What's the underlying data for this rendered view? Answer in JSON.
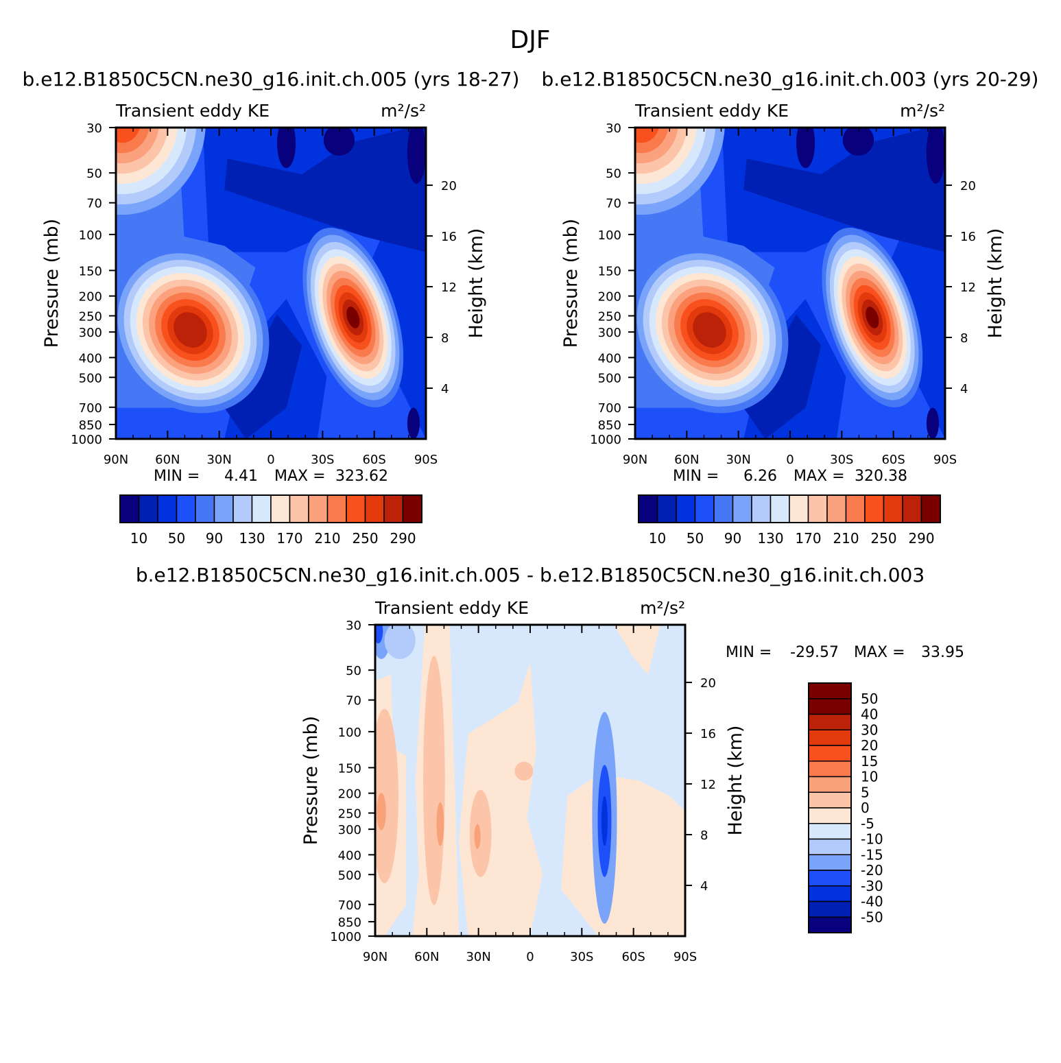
{
  "page_title": "DJF",
  "units": "m²/s²",
  "colors": {
    "main_scale": [
      "#08007c",
      "#0020b4",
      "#0032de",
      "#1e50fa",
      "#4678f5",
      "#7aa3fa",
      "#b2cbfb",
      "#d8e8fc",
      "#fde6d4",
      "#fcc4a8",
      "#fba17e",
      "#f97a4c",
      "#f8511e",
      "#e23a0c",
      "#bc2208",
      "#7a0000"
    ],
    "diff_scale": [
      "#08007c",
      "#0020b4",
      "#0032de",
      "#1e50fa",
      "#7aa3fa",
      "#b2cbfb",
      "#d8e8fc",
      "#fde6d4",
      "#fcc4a8",
      "#f9a178",
      "#f97a4c",
      "#f8511e",
      "#e23a0c",
      "#bc2208",
      "#7a0000"
    ]
  },
  "chart_data": [
    {
      "type": "heatmap",
      "title": "b.e12.B1850C5CN.ne30_g16.init.ch.005 (yrs 18-27)",
      "left_string": "Transient eddy KE",
      "right_string": "m²/s²",
      "ylabel": "Pressure (mb)",
      "ylabel_right": "Height (km)",
      "x_ticks": [
        "90N",
        "60N",
        "30N",
        "0",
        "30S",
        "60S",
        "90S"
      ],
      "y_ticks": [
        "30",
        "50",
        "70",
        "100",
        "150",
        "200",
        "250",
        "300",
        "400",
        "500",
        "700",
        "850",
        "1000"
      ],
      "y_ticks_right": [
        "20",
        "16",
        "12",
        "8",
        "4"
      ],
      "min_label": "MIN =",
      "min_value": "4.41",
      "max_label": "MAX =",
      "max_value": "323.62",
      "colorbar_labels": [
        "10",
        "50",
        "90",
        "130",
        "170",
        "210",
        "250",
        "290"
      ]
    },
    {
      "type": "heatmap",
      "title": "b.e12.B1850C5CN.ne30_g16.init.ch.003 (yrs 20-29)",
      "left_string": "Transient eddy KE",
      "right_string": "m²/s²",
      "ylabel": "Pressure (mb)",
      "ylabel_right": "Height (km)",
      "x_ticks": [
        "90N",
        "60N",
        "30N",
        "0",
        "30S",
        "60S",
        "90S"
      ],
      "y_ticks": [
        "30",
        "50",
        "70",
        "100",
        "150",
        "200",
        "250",
        "300",
        "400",
        "500",
        "700",
        "850",
        "1000"
      ],
      "y_ticks_right": [
        "20",
        "16",
        "12",
        "8",
        "4"
      ],
      "min_label": "MIN =",
      "min_value": "6.26",
      "max_label": "MAX =",
      "max_value": "320.38",
      "colorbar_labels": [
        "10",
        "50",
        "90",
        "130",
        "170",
        "210",
        "250",
        "290"
      ]
    },
    {
      "type": "heatmap",
      "title": "b.e12.B1850C5CN.ne30_g16.init.ch.005 - b.e12.B1850C5CN.ne30_g16.init.ch.003",
      "left_string": "Transient eddy KE",
      "right_string": "m²/s²",
      "ylabel": "Pressure (mb)",
      "ylabel_right": "Height (km)",
      "x_ticks": [
        "90N",
        "60N",
        "30N",
        "0",
        "30S",
        "60S",
        "90S"
      ],
      "y_ticks": [
        "30",
        "50",
        "70",
        "100",
        "150",
        "200",
        "250",
        "300",
        "400",
        "500",
        "700",
        "850",
        "1000"
      ],
      "y_ticks_right": [
        "20",
        "16",
        "12",
        "8",
        "4"
      ],
      "min_label": "MIN =",
      "min_value": "-29.57",
      "max_label": "MAX =",
      "max_value": "33.95",
      "colorbar_labels": [
        "50",
        "40",
        "30",
        "20",
        "15",
        "10",
        "5",
        "0",
        "-5",
        "-10",
        "-15",
        "-20",
        "-30",
        "-40",
        "-50"
      ]
    }
  ]
}
